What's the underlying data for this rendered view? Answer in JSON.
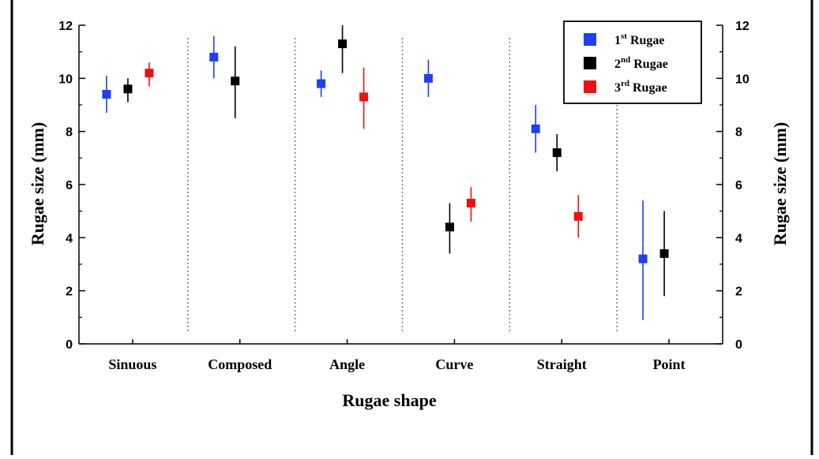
{
  "chart_data": {
    "type": "scatter",
    "xlabel": "Rugae shape",
    "ylabel": "Rugae size (mm)",
    "ylabel_right": "Rugae size (mm)",
    "ylim": [
      0,
      12
    ],
    "yticks": [
      "0",
      "2",
      "4",
      "6",
      "8",
      "10",
      "12"
    ],
    "categories": [
      "Sinuous",
      "Composed",
      "Angle",
      "Curve",
      "Straight",
      "Point"
    ],
    "grid": false,
    "category_separators": "dotted",
    "legend_position": "top-right",
    "series": [
      {
        "name_base": "1",
        "name_sup": "st",
        "name_rest": " Rugae",
        "color": "#1f3ff5",
        "values": [
          9.4,
          10.8,
          9.8,
          10.0,
          8.1,
          3.2
        ],
        "err_low": [
          8.7,
          10.0,
          9.3,
          9.3,
          7.2,
          0.9
        ],
        "err_high": [
          10.1,
          11.6,
          10.3,
          10.7,
          9.0,
          5.4
        ]
      },
      {
        "name_base": "2",
        "name_sup": "nd",
        "name_rest": " Rugae",
        "color": "#000000",
        "values": [
          9.6,
          9.9,
          11.3,
          4.4,
          7.2,
          3.4
        ],
        "err_low": [
          9.1,
          8.5,
          10.2,
          3.4,
          6.5,
          1.8
        ],
        "err_high": [
          10.0,
          11.2,
          12.0,
          5.3,
          7.9,
          5.0
        ]
      },
      {
        "name_base": "3",
        "name_sup": "rd",
        "name_rest": " Rugae",
        "color": "#ee1111",
        "values": [
          10.2,
          null,
          9.3,
          5.3,
          4.8,
          null
        ],
        "err_low": [
          9.7,
          null,
          8.1,
          4.6,
          4.0,
          null
        ],
        "err_high": [
          10.6,
          null,
          10.4,
          5.9,
          5.6,
          null
        ]
      }
    ]
  }
}
